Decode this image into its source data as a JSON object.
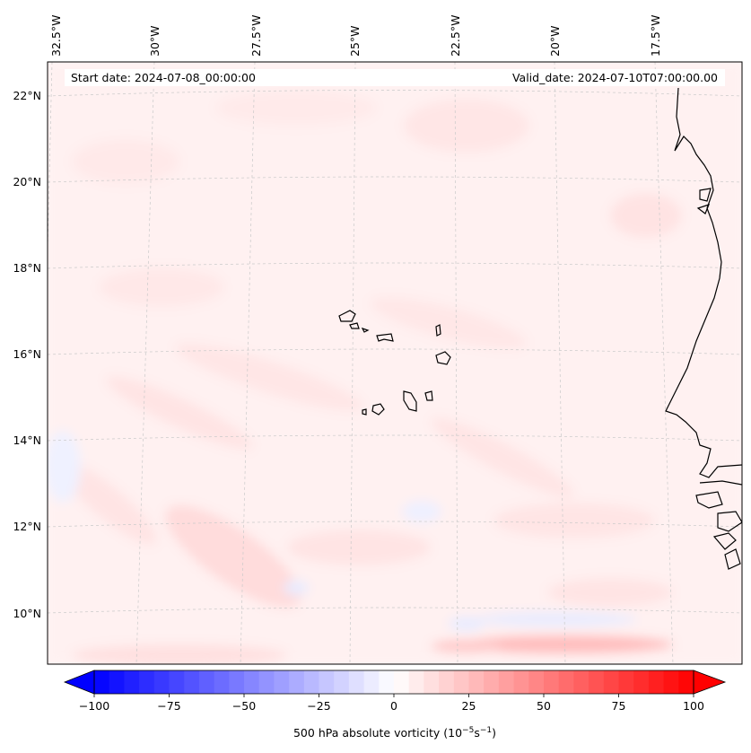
{
  "map": {
    "header": {
      "start_date": "Start date: 2024-07-08_00:00:00",
      "valid_date": "Valid_date: 2024-07-10T07:00:00.00"
    },
    "lon_labels": [
      "32.5°W",
      "30°W",
      "27.5°W",
      "25°W",
      "22.5°W",
      "20°W",
      "17.5°W"
    ],
    "lat_labels": [
      "22°N",
      "20°N",
      "18°N",
      "16°N",
      "14°N",
      "12°N",
      "10°N"
    ],
    "colorbar": {
      "ticks": [
        "−100",
        "−75",
        "−50",
        "−25",
        "0",
        "25",
        "50",
        "75",
        "100"
      ],
      "tick_values": [
        -100,
        -75,
        -50,
        -25,
        0,
        25,
        50,
        75,
        100
      ],
      "min": -100,
      "max": 100,
      "label_prefix": "500 hPa absolute vorticity (10",
      "label_exp1": "−5",
      "label_mid": "s",
      "label_exp2": "−1",
      "label_suffix": ")",
      "colormap": "bwr"
    },
    "colors": {
      "negative": "#0000ff",
      "positive": "#ff0000",
      "neutral": "#ffffff",
      "coastline": "#000000",
      "gridline": "#bbbbbb"
    }
  }
}
